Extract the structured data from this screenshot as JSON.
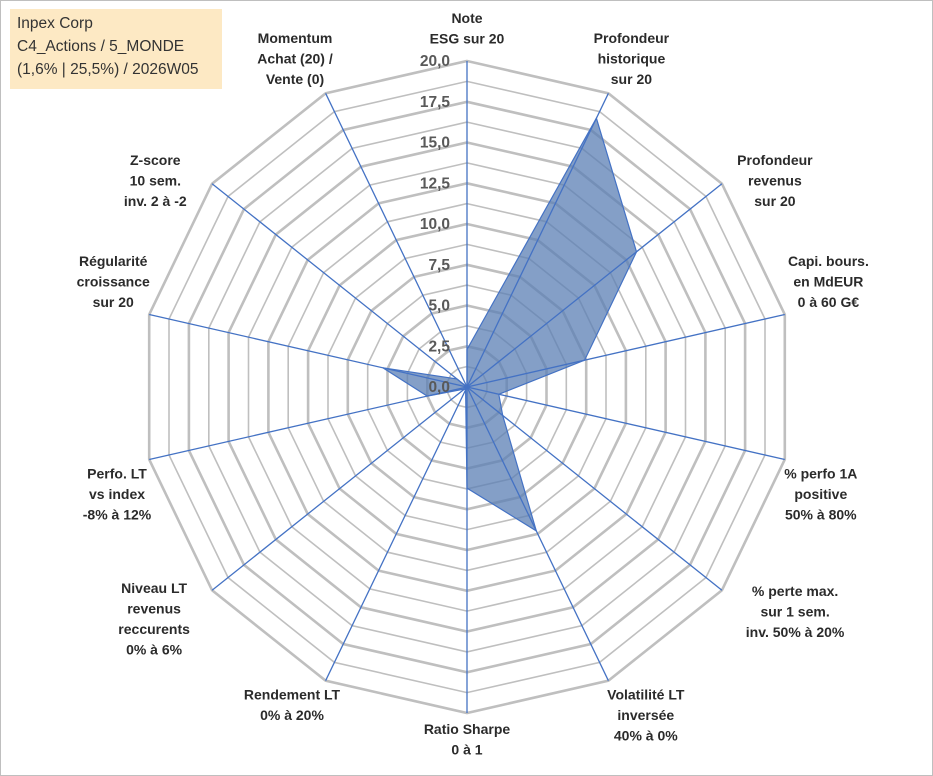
{
  "title_box": {
    "line1": "Inpex Corp",
    "line2": "C4_Actions / 5_MONDE",
    "line3": "(1,6% | 25,5%) / 2026W05",
    "background": "#fde9c4"
  },
  "chart_data": {
    "type": "radar",
    "title": "",
    "axes": [
      {
        "label": [
          "Note",
          "ESG sur 20"
        ],
        "value": 2.3
      },
      {
        "label": [
          "Profondeur",
          "historique",
          "sur 20"
        ],
        "value": 18.3
      },
      {
        "label": [
          "Profondeur",
          "revenus",
          "sur 20"
        ],
        "value": 13.3
      },
      {
        "label": [
          "Capi. bours.",
          "en MdEUR",
          "0 à 60 G€"
        ],
        "value": 7.4
      },
      {
        "label": [
          "% perfo 1A",
          "positive",
          "50% à 80%"
        ],
        "value": 2.0
      },
      {
        "label": [
          "% perte max.",
          "sur 1 sem.",
          "inv. 50% à 20%"
        ],
        "value": 2.8
      },
      {
        "label": [
          "Volatilité LT",
          "inversée",
          "40% à 0%"
        ],
        "value": 9.8
      },
      {
        "label": [
          "Ratio Sharpe",
          "0 à 1"
        ],
        "value": 6.2
      },
      {
        "label": [
          "Rendement LT",
          "0% à 20%"
        ],
        "value": 0.2
      },
      {
        "label": [
          "Niveau LT",
          "revenus",
          "reccurents",
          "0% à 6%"
        ],
        "value": 0.2
      },
      {
        "label": [
          "Perfo. LT",
          "vs index",
          "-8% à 12%"
        ],
        "value": 2.5
      },
      {
        "label": [
          "Régularité",
          "croissance",
          "sur 20"
        ],
        "value": 5.3
      },
      {
        "label": [
          "Z-score",
          "10 sem.",
          "inv. 2 à -2"
        ],
        "value": 0.8
      },
      {
        "label": [
          "Momentum",
          "Achat (20) /",
          "Vente (0)"
        ],
        "value": 0.0
      }
    ],
    "ticks": [
      "0,0",
      "2,5",
      "5,0",
      "7,5",
      "10,0",
      "12,5",
      "15,0",
      "17,5",
      "20,0"
    ],
    "range": [
      0,
      20
    ],
    "grid_step": 1.25,
    "colors": {
      "fill": "#5b7fb4",
      "fill_opacity": 0.75,
      "series_line": "#4472c4",
      "spoke": "#4472c4",
      "grid_major": "#bfbfbf",
      "grid_minor": "#bfbfbf"
    }
  }
}
